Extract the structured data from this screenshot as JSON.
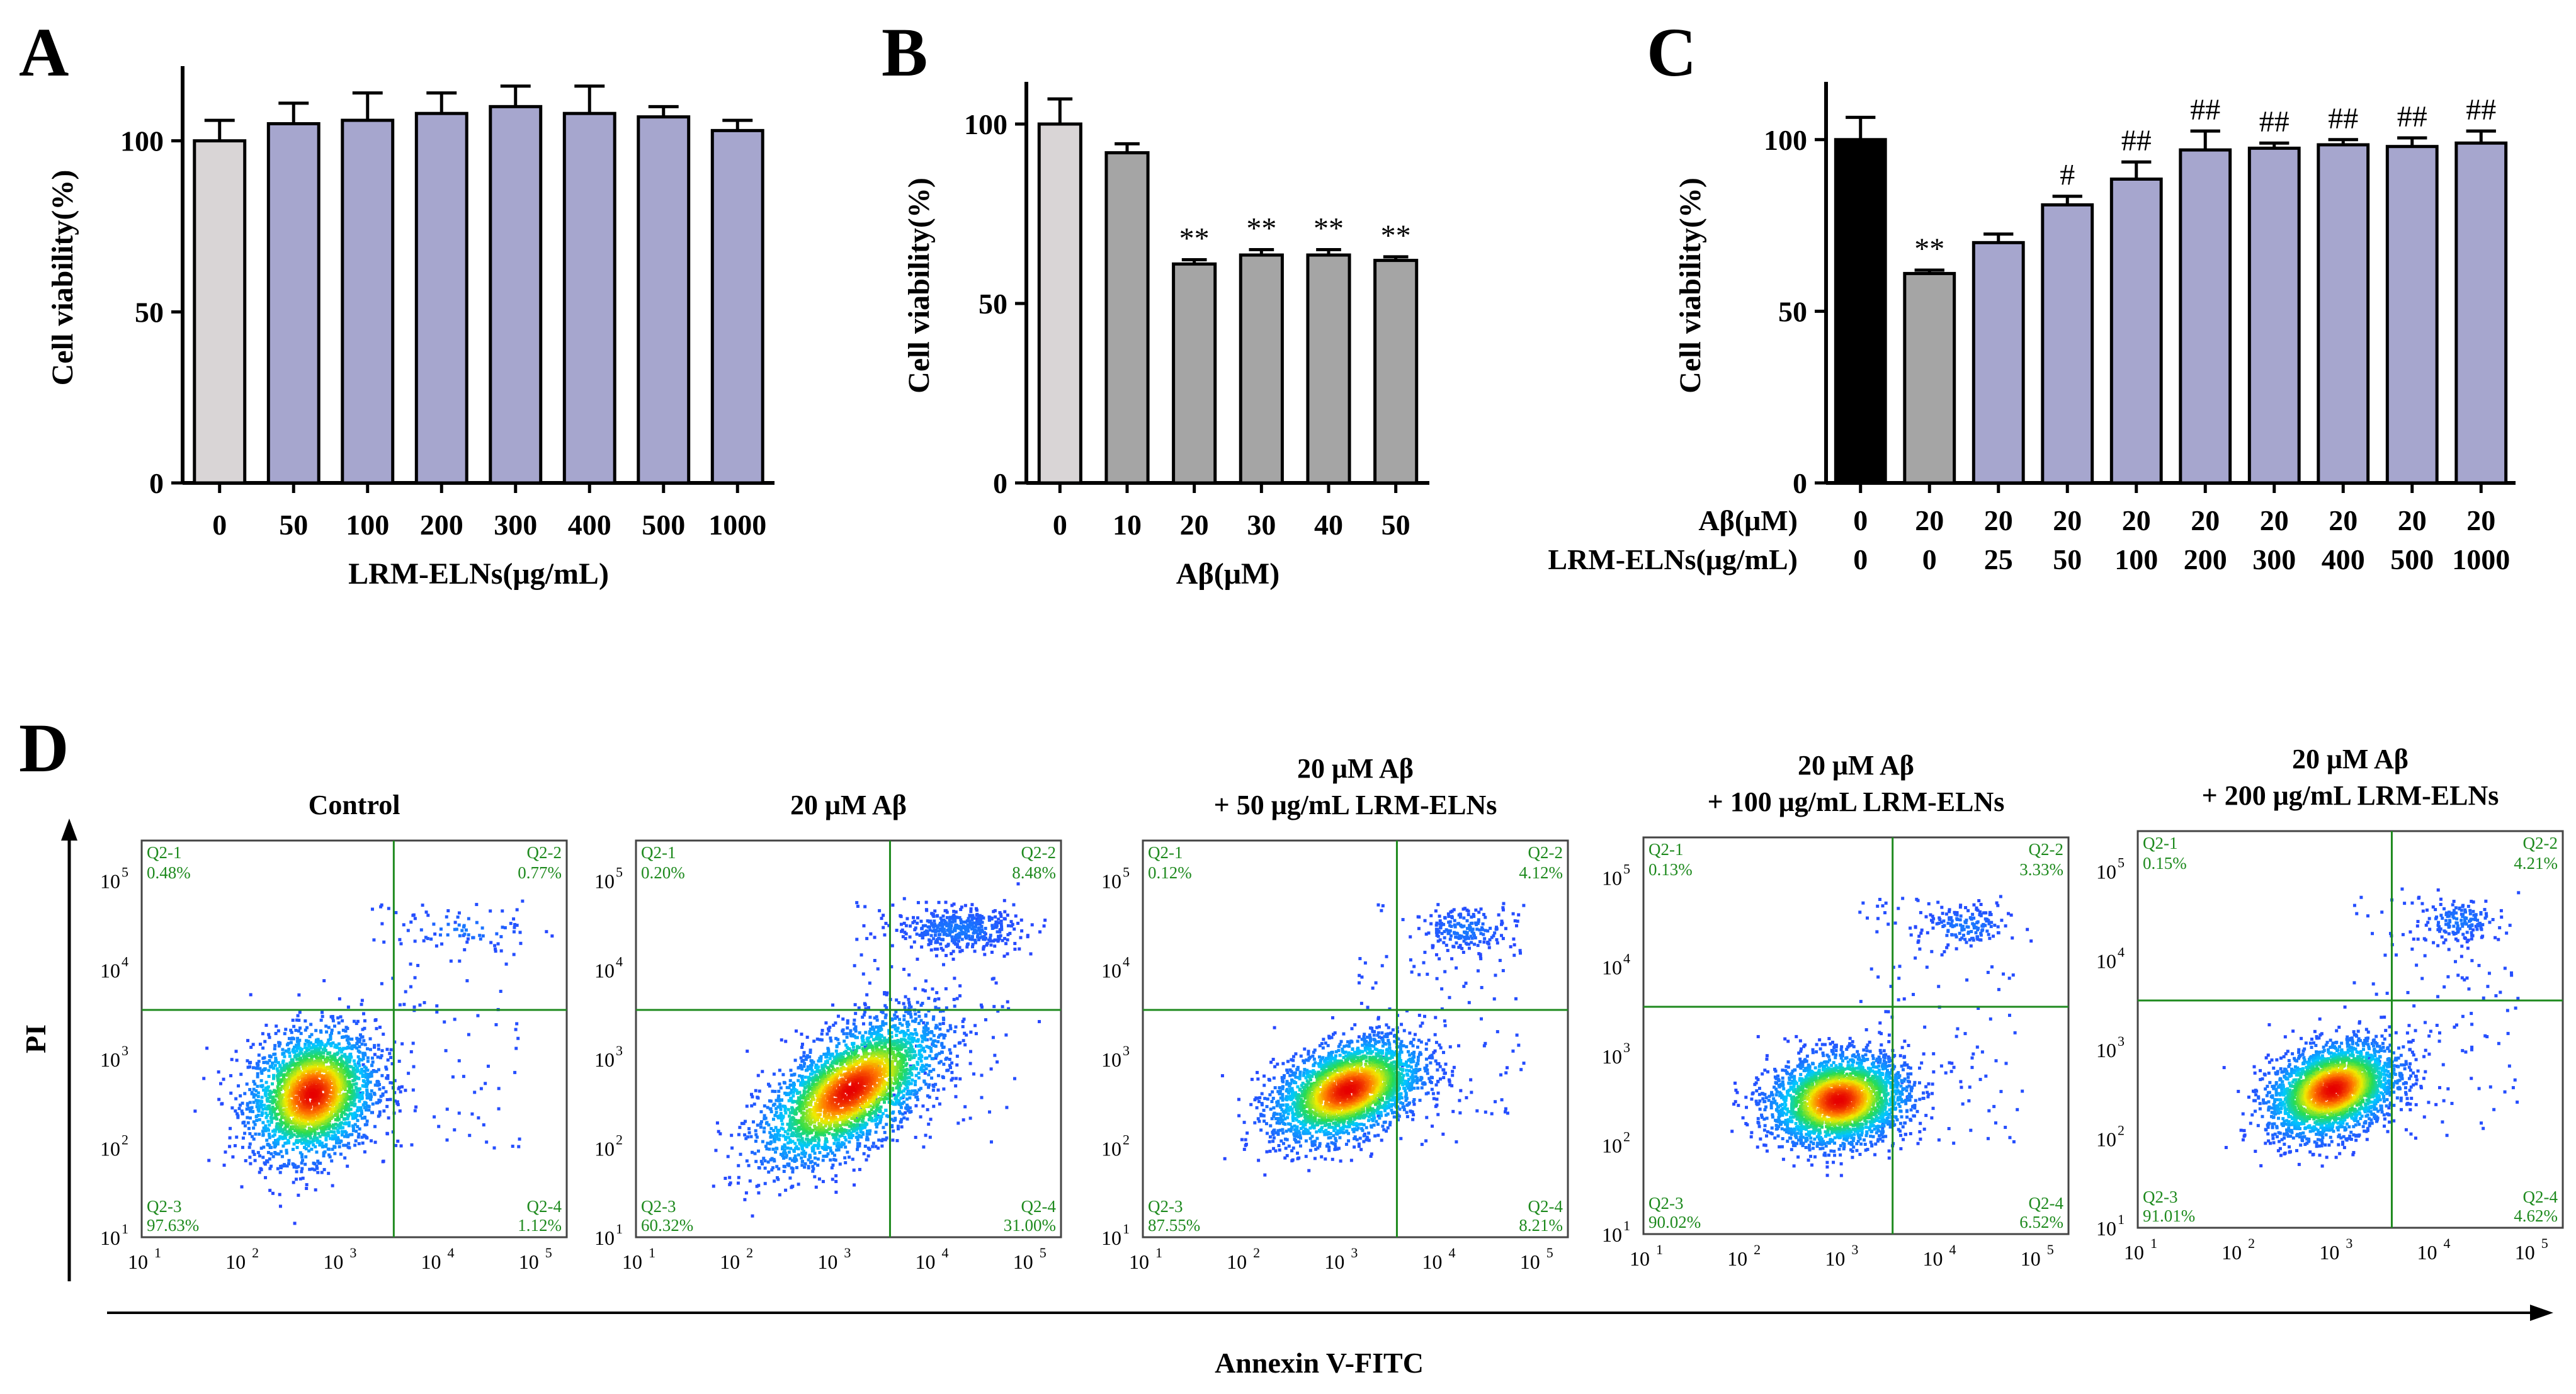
{
  "panels": {
    "A": "A",
    "B": "B",
    "C": "C",
    "D": "D"
  },
  "colors": {
    "light_gray": "#D9D5D6",
    "gray": "#A5A5A5",
    "purple": "#A6A6CE",
    "black": "#000000",
    "green": "#1E8A1E"
  },
  "chart_data": [
    {
      "id": "A",
      "type": "bar",
      "ylabel": "Cell viability(%)",
      "xlabel": "LRM-ELNs(μg/mL)",
      "categories": [
        "0",
        "50",
        "100",
        "200",
        "300",
        "400",
        "500",
        "1000"
      ],
      "values": [
        100,
        105,
        106,
        108,
        110,
        108,
        107,
        103
      ],
      "errors": [
        6,
        6,
        8,
        6,
        6,
        8,
        3,
        3
      ],
      "colors": [
        "light_gray",
        "purple",
        "purple",
        "purple",
        "purple",
        "purple",
        "purple",
        "purple"
      ],
      "ylim": [
        0,
        120
      ],
      "yticks": [
        0,
        50,
        100
      ]
    },
    {
      "id": "B",
      "type": "bar",
      "ylabel": "Cell viability(%)",
      "xlabel": "Aβ(μM)",
      "categories": [
        "0",
        "10",
        "20",
        "30",
        "40",
        "50"
      ],
      "values": [
        100,
        92,
        61,
        63.5,
        63.5,
        62
      ],
      "errors": [
        7,
        2.5,
        1.2,
        1.5,
        1.5,
        1
      ],
      "colors": [
        "light_gray",
        "gray",
        "gray",
        "gray",
        "gray",
        "gray"
      ],
      "annotations": [
        "",
        "",
        "**",
        "**",
        "**",
        "**"
      ],
      "ylim": [
        0,
        110
      ],
      "yticks": [
        0,
        50,
        100
      ]
    },
    {
      "id": "C",
      "type": "bar",
      "ylabel": "Cell viability(%)",
      "row_labels": [
        "Aβ(μM)",
        "LRM-ELNs(μg/mL)"
      ],
      "row1": [
        "0",
        "20",
        "20",
        "20",
        "20",
        "20",
        "20",
        "20",
        "20",
        "20"
      ],
      "row2": [
        "0",
        "0",
        "25",
        "50",
        "100",
        "200",
        "300",
        "400",
        "500",
        "1000"
      ],
      "values": [
        100,
        61,
        70,
        81,
        88.5,
        97,
        97.5,
        98.5,
        98,
        99
      ],
      "errors": [
        6.5,
        1,
        2.5,
        2.5,
        5,
        5.5,
        1.5,
        1.5,
        2.5,
        3.5
      ],
      "colors": [
        "black",
        "gray",
        "purple",
        "purple",
        "purple",
        "purple",
        "purple",
        "purple",
        "purple",
        "purple"
      ],
      "annotations": [
        "",
        "**",
        "",
        "#",
        "##",
        "##",
        "##",
        "##",
        "##",
        "##"
      ],
      "ylim": [
        0,
        115
      ],
      "yticks": [
        0,
        50,
        100
      ]
    },
    {
      "id": "D",
      "type": "scatter",
      "subtype": "flow cytometry dot plots",
      "ylabel": "PI",
      "xlabel": "Annexin V-FITC",
      "axis_ticks": [
        "10",
        "10",
        "10",
        "10",
        "10"
      ],
      "axis_tick_exponents": [
        "1",
        "2",
        "3",
        "4",
        "5"
      ],
      "plots": [
        {
          "title1": "Control",
          "title2": "",
          "q": {
            "q1": "Q2-1",
            "q2": "Q2-2",
            "q3": "Q2-3",
            "q4": "Q2-4"
          },
          "p": {
            "q1": "0.48%",
            "q2": "0.77%",
            "q3": "97.63%",
            "q4": "1.12%"
          },
          "gate_x": 3.58,
          "gate_y": 3.55,
          "cluster_x": 2.75,
          "cluster_y": 2.6,
          "spread_x": 0.32,
          "spread_y": 0.35,
          "tilt": 0.2,
          "n_main": 2600,
          "n_top": 55,
          "top_spread_x": 0.35
        },
        {
          "title1": "20 μM Aβ",
          "title2": "",
          "q": {
            "q1": "Q2-1",
            "q2": "Q2-2",
            "q3": "Q2-3",
            "q4": "Q2-4"
          },
          "p": {
            "q1": "0.20%",
            "q2": "8.48%",
            "q3": "60.32%",
            "q4": "31.00%"
          },
          "gate_x": 3.6,
          "gate_y": 3.55,
          "cluster_x": 3.2,
          "cluster_y": 2.65,
          "spread_x": 0.45,
          "spread_y": 0.32,
          "tilt": 0.55,
          "n_main": 3000,
          "n_top": 420,
          "top_spread_x": 0.32
        },
        {
          "title1": "20 μM Aβ",
          "title2": "+ 50 μg/mL LRM-ELNs",
          "q": {
            "q1": "Q2-1",
            "q2": "Q2-2",
            "q3": "Q2-3",
            "q4": "Q2-4"
          },
          "p": {
            "q1": "0.12%",
            "q2": "4.12%",
            "q3": "87.55%",
            "q4": "8.21%"
          },
          "gate_x": 3.6,
          "gate_y": 3.55,
          "cluster_x": 3.1,
          "cluster_y": 2.65,
          "spread_x": 0.38,
          "spread_y": 0.26,
          "tilt": 0.3,
          "n_main": 2700,
          "n_top": 180,
          "top_spread_x": 0.22
        },
        {
          "title1": "20 μM Aβ",
          "title2": "+ 100 μg/mL LRM-ELNs",
          "q": {
            "q1": "Q2-1",
            "q2": "Q2-2",
            "q3": "Q2-3",
            "q4": "Q2-4"
          },
          "p": {
            "q1": "0.13%",
            "q2": "3.33%",
            "q3": "90.02%",
            "q4": "6.52%"
          },
          "gate_x": 3.55,
          "gate_y": 3.55,
          "cluster_x": 3.0,
          "cluster_y": 2.5,
          "spread_x": 0.35,
          "spread_y": 0.25,
          "tilt": 0.1,
          "n_main": 2700,
          "n_top": 150,
          "top_spread_x": 0.22
        },
        {
          "title1": "20 μM Aβ",
          "title2": "+ 200 μg/mL LRM-ELNs",
          "q": {
            "q1": "Q2-1",
            "q2": "Q2-2",
            "q3": "Q2-3",
            "q4": "Q2-4"
          },
          "p": {
            "q1": "0.15%",
            "q2": "4.21%",
            "q3": "91.01%",
            "q4": "4.62%"
          },
          "gate_x": 3.6,
          "gate_y": 3.55,
          "cluster_x": 3.0,
          "cluster_y": 2.55,
          "spread_x": 0.33,
          "spread_y": 0.25,
          "tilt": 0.25,
          "n_main": 2700,
          "n_top": 150,
          "top_spread_x": 0.2
        }
      ]
    }
  ]
}
